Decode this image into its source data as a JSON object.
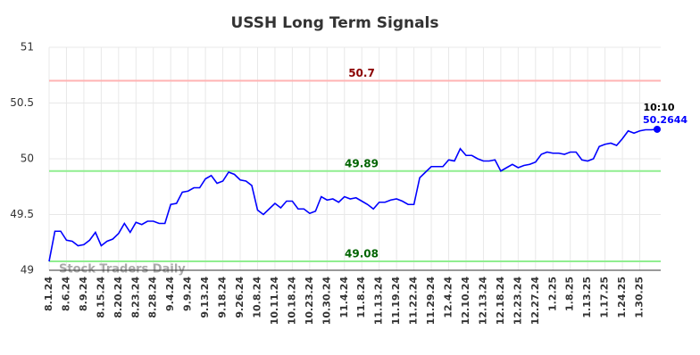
{
  "chart_data": {
    "type": "line",
    "title": "USSH Long Term Signals",
    "categories": [
      "8.1.24",
      null,
      null,
      "8.6.24",
      null,
      null,
      "8.9.24",
      null,
      null,
      "8.15.24",
      null,
      null,
      "8.20.24",
      null,
      null,
      "8.23.24",
      null,
      null,
      "8.28.24",
      null,
      null,
      "9.4.24",
      null,
      null,
      "9.9.24",
      null,
      null,
      "9.13.24",
      null,
      null,
      "9.18.24",
      null,
      null,
      "9.26.24",
      null,
      null,
      "10.8.24",
      null,
      null,
      "10.11.24",
      null,
      null,
      "10.18.24",
      null,
      null,
      "10.23.24",
      null,
      null,
      "10.30.24",
      null,
      null,
      "11.4.24",
      null,
      null,
      "11.8.24",
      null,
      null,
      "11.13.24",
      null,
      null,
      "11.19.24",
      null,
      null,
      "11.22.24",
      null,
      null,
      "11.29.24",
      null,
      null,
      "12.4.24",
      null,
      null,
      "12.10.24",
      null,
      null,
      "12.13.24",
      null,
      null,
      "12.18.24",
      null,
      null,
      "12.23.24",
      null,
      null,
      "12.27.24",
      null,
      null,
      "1.2.25",
      null,
      null,
      "1.8.25",
      null,
      null,
      "1.13.25",
      null,
      null,
      "1.17.25",
      null,
      null,
      "1.24.25",
      null,
      null,
      "1.30.25",
      null,
      null,
      null
    ],
    "values": [
      49.08,
      49.35,
      49.35,
      49.27,
      49.26,
      49.22,
      49.23,
      49.27,
      49.34,
      49.22,
      49.26,
      49.28,
      49.33,
      49.42,
      49.34,
      49.43,
      49.41,
      49.44,
      49.44,
      49.42,
      49.42,
      49.59,
      49.6,
      49.7,
      49.71,
      49.74,
      49.74,
      49.82,
      49.85,
      49.78,
      49.8,
      49.88,
      49.86,
      49.81,
      49.8,
      49.76,
      49.54,
      49.5,
      49.55,
      49.6,
      49.56,
      49.62,
      49.62,
      49.55,
      49.55,
      49.51,
      49.53,
      49.66,
      49.63,
      49.64,
      49.61,
      49.66,
      49.64,
      49.65,
      49.62,
      49.59,
      49.55,
      49.61,
      49.61,
      49.63,
      49.64,
      49.62,
      49.59,
      49.59,
      49.83,
      49.88,
      49.93,
      49.93,
      49.93,
      49.99,
      49.98,
      50.09,
      50.03,
      50.03,
      50.0,
      49.98,
      49.98,
      49.99,
      49.89,
      49.92,
      49.95,
      49.92,
      49.94,
      49.95,
      49.97,
      50.04,
      50.06,
      50.05,
      50.05,
      50.04,
      50.06,
      50.06,
      49.99,
      49.98,
      50.0,
      50.11,
      50.13,
      50.14,
      50.12,
      50.18,
      50.25,
      50.23,
      50.25,
      50.26,
      50.26,
      50.2644
    ],
    "color": "#0000ff",
    "last_time": "10:10",
    "watermark": "Stock Traders Daily",
    "hlines": [
      {
        "value": 50.7,
        "color": "#ffb3b3",
        "label_color": "#8b0000"
      },
      {
        "value": 49.89,
        "color": "#90ee90",
        "label_color": "#006400"
      },
      {
        "value": 49.08,
        "color": "#90ee90",
        "label_color": "#006400"
      }
    ],
    "ylim": [
      49,
      51
    ],
    "yticks": [
      49,
      49.5,
      50,
      50.5,
      51
    ],
    "grid": true
  }
}
